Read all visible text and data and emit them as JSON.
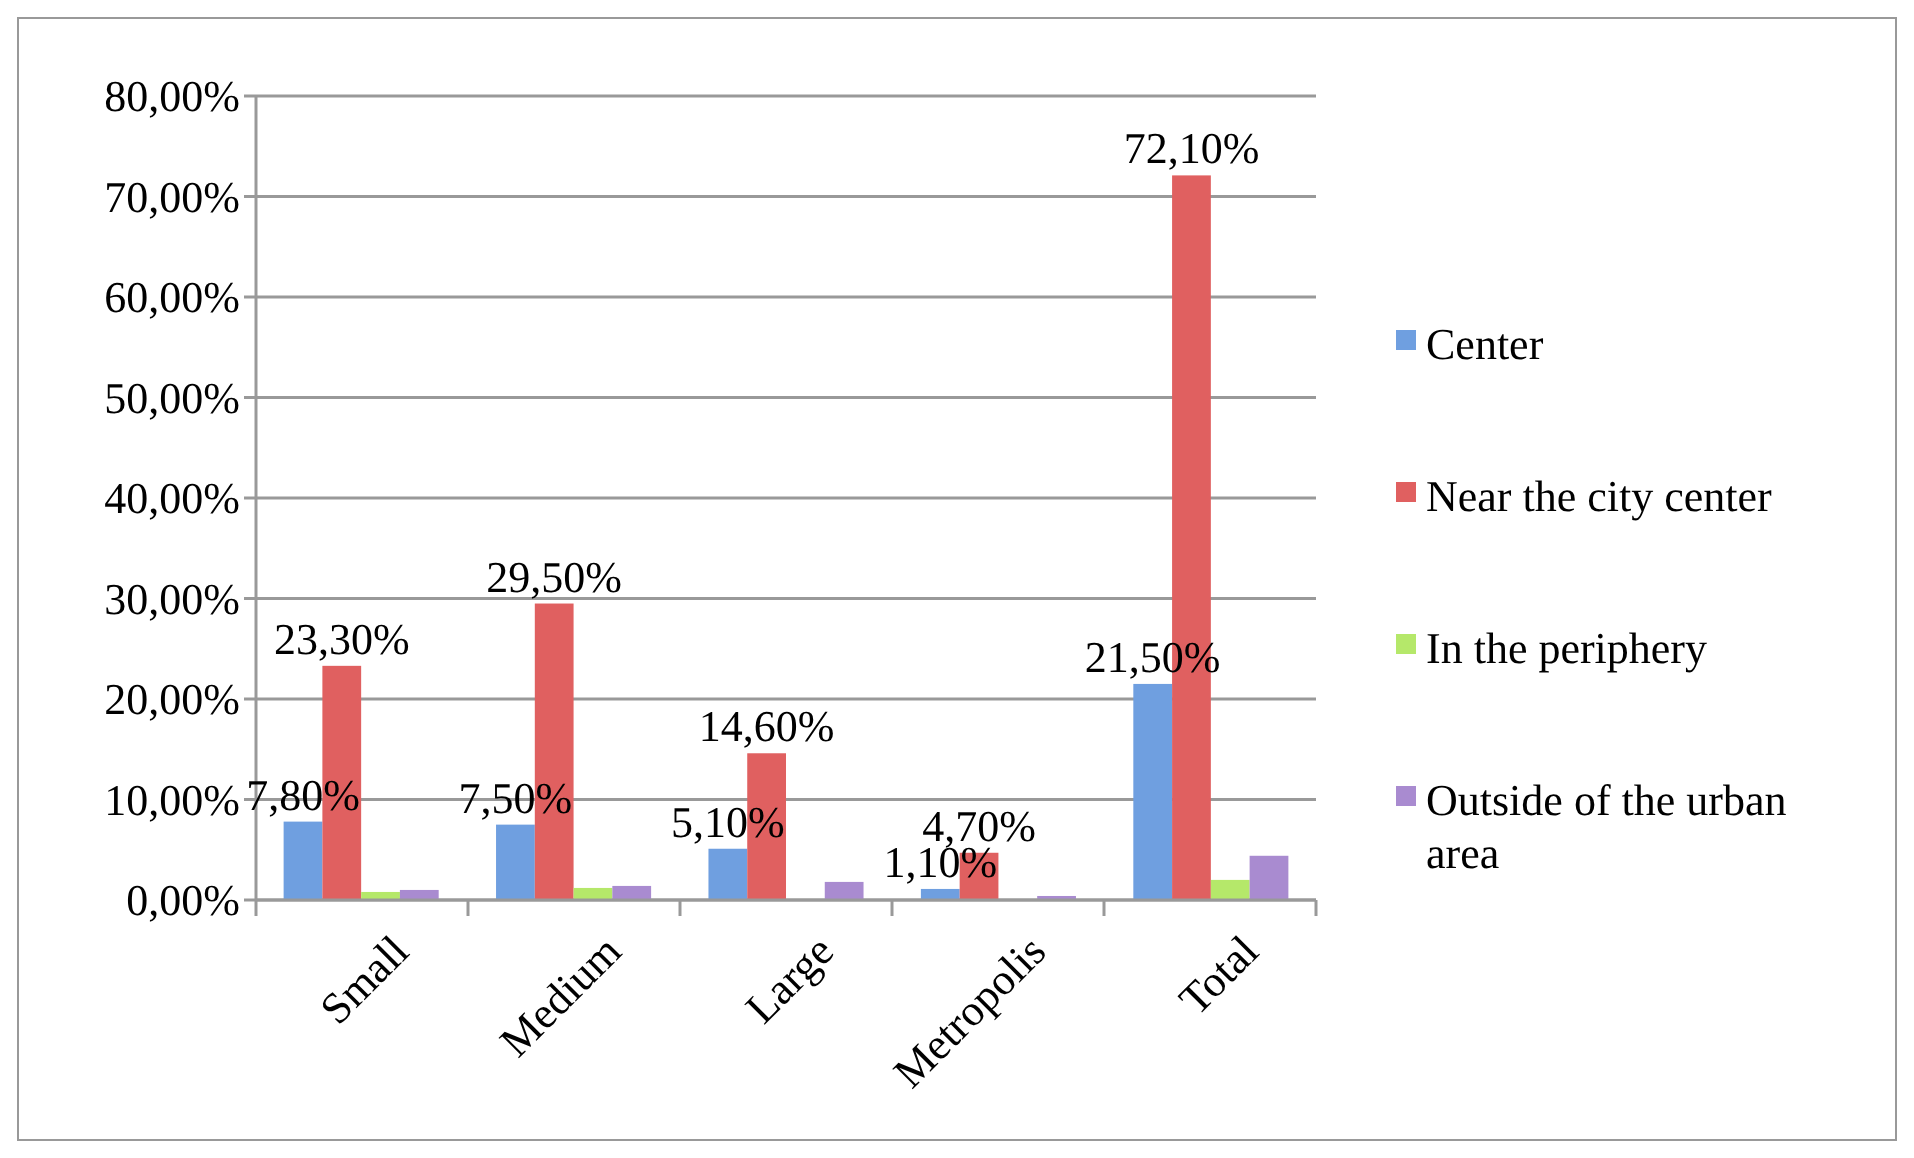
{
  "chart_data": {
    "type": "bar",
    "categories": [
      "Small",
      "Medium",
      "Large",
      "Metropolis",
      "Total"
    ],
    "series": [
      {
        "name": "Center",
        "color": "#6f9fe0",
        "values": [
          7.8,
          7.5,
          5.1,
          1.1,
          21.5
        ],
        "value_labels": [
          "7,80%",
          "7,50%",
          "5,10%",
          "1,10%",
          "21,50%"
        ]
      },
      {
        "name": "Near the city center",
        "color": "#e06060",
        "values": [
          23.3,
          29.5,
          14.6,
          4.7,
          72.1
        ],
        "value_labels": [
          "23,30%",
          "29,50%",
          "14,60%",
          "4,70%",
          "72,10%"
        ]
      },
      {
        "name": "In the periphery",
        "color": "#b5e86a",
        "values": [
          0.8,
          1.2,
          0.1,
          0,
          2.0
        ]
      },
      {
        "name": "Outside of the urban area",
        "color": "#a98bd0",
        "values": [
          1.0,
          1.4,
          1.8,
          0.4,
          4.4
        ]
      }
    ],
    "ylim": [
      0,
      80
    ],
    "yticks": [
      {
        "value": 0,
        "label": "0,00%"
      },
      {
        "value": 10,
        "label": "10,00%"
      },
      {
        "value": 20,
        "label": "20,00%"
      },
      {
        "value": 30,
        "label": "30,00%"
      },
      {
        "value": 40,
        "label": "40,00%"
      },
      {
        "value": 50,
        "label": "50,00%"
      },
      {
        "value": 60,
        "label": "60,00%"
      },
      {
        "value": 70,
        "label": "70,00%"
      },
      {
        "value": 80,
        "label": "80,00%"
      }
    ],
    "grid": "y",
    "legend": "right"
  }
}
